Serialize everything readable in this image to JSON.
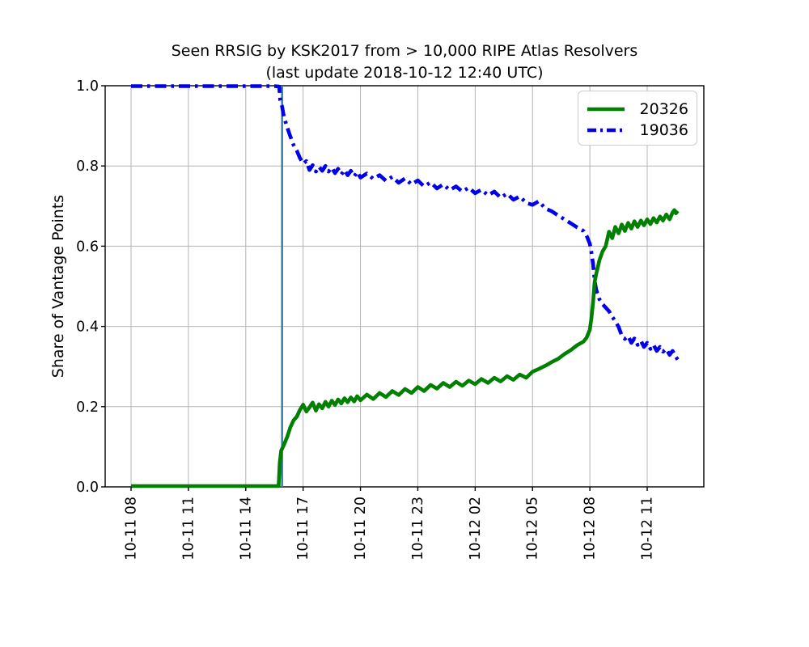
{
  "figure": {
    "title": "Seen RRSIG by KSK2017 from > 10,000 RIPE Atlas Resolvers",
    "subtitle": "(last update 2018-10-12 12:40 UTC)"
  },
  "chart_data": {
    "type": "line",
    "title": "Seen RRSIG by KSK2017 from > 10,000 RIPE Atlas Resolvers",
    "subtitle": "(last update 2018-10-12 12:40 UTC)",
    "xlabel": "",
    "ylabel": "Share of Vantage Points",
    "x_unit": "hours since 2018-10-11 08:00 UTC",
    "xlim": [
      -1.35,
      29.7
    ],
    "ylim": [
      0.0,
      1.0
    ],
    "grid": true,
    "grid_color": "#b4b4b4",
    "legend_position": "upper right",
    "x_ticks": [
      {
        "t": 0,
        "label": "10-11 08"
      },
      {
        "t": 3,
        "label": "10-11 11"
      },
      {
        "t": 6,
        "label": "10-11 14"
      },
      {
        "t": 9,
        "label": "10-11 17"
      },
      {
        "t": 12,
        "label": "10-11 20"
      },
      {
        "t": 15,
        "label": "10-11 23"
      },
      {
        "t": 18,
        "label": "10-12 02"
      },
      {
        "t": 21,
        "label": "10-12 05"
      },
      {
        "t": 24,
        "label": "10-12 08"
      },
      {
        "t": 27,
        "label": "10-12 11"
      }
    ],
    "y_ticks": [
      {
        "v": 0.0,
        "label": "0.0"
      },
      {
        "v": 0.2,
        "label": "0.2"
      },
      {
        "v": 0.4,
        "label": "0.4"
      },
      {
        "v": 0.6,
        "label": "0.6"
      },
      {
        "v": 0.8,
        "label": "0.8"
      },
      {
        "v": 1.0,
        "label": "1.0"
      }
    ],
    "vline": {
      "t": 7.9,
      "color": "#2e7d9b"
    },
    "series": [
      {
        "name": "20326",
        "color": "#008000",
        "line_style": "solid",
        "points": [
          [
            0,
            0.002
          ],
          [
            1,
            0.002
          ],
          [
            2,
            0.002
          ],
          [
            3,
            0.002
          ],
          [
            4,
            0.002
          ],
          [
            5,
            0.002
          ],
          [
            6,
            0.002
          ],
          [
            7,
            0.002
          ],
          [
            7.5,
            0.002
          ],
          [
            7.72,
            0.002
          ],
          [
            7.78,
            0.06
          ],
          [
            7.85,
            0.09
          ],
          [
            8,
            0.105
          ],
          [
            8.17,
            0.125
          ],
          [
            8.33,
            0.148
          ],
          [
            8.5,
            0.166
          ],
          [
            8.67,
            0.175
          ],
          [
            8.83,
            0.192
          ],
          [
            9,
            0.205
          ],
          [
            9.17,
            0.188
          ],
          [
            9.33,
            0.198
          ],
          [
            9.5,
            0.21
          ],
          [
            9.67,
            0.19
          ],
          [
            9.83,
            0.206
          ],
          [
            10,
            0.196
          ],
          [
            10.17,
            0.212
          ],
          [
            10.33,
            0.2
          ],
          [
            10.5,
            0.215
          ],
          [
            10.67,
            0.204
          ],
          [
            10.83,
            0.218
          ],
          [
            11,
            0.208
          ],
          [
            11.17,
            0.221
          ],
          [
            11.33,
            0.211
          ],
          [
            11.5,
            0.223
          ],
          [
            11.67,
            0.213
          ],
          [
            11.83,
            0.226
          ],
          [
            12,
            0.216
          ],
          [
            12.33,
            0.23
          ],
          [
            12.67,
            0.219
          ],
          [
            13,
            0.234
          ],
          [
            13.33,
            0.224
          ],
          [
            13.67,
            0.239
          ],
          [
            14,
            0.229
          ],
          [
            14.33,
            0.244
          ],
          [
            14.67,
            0.234
          ],
          [
            15,
            0.249
          ],
          [
            15.33,
            0.239
          ],
          [
            15.67,
            0.254
          ],
          [
            16,
            0.245
          ],
          [
            16.33,
            0.259
          ],
          [
            16.67,
            0.249
          ],
          [
            17,
            0.262
          ],
          [
            17.33,
            0.252
          ],
          [
            17.67,
            0.265
          ],
          [
            18,
            0.256
          ],
          [
            18.33,
            0.269
          ],
          [
            18.67,
            0.259
          ],
          [
            19,
            0.272
          ],
          [
            19.33,
            0.263
          ],
          [
            19.67,
            0.276
          ],
          [
            20,
            0.267
          ],
          [
            20.33,
            0.28
          ],
          [
            20.67,
            0.272
          ],
          [
            21,
            0.287
          ],
          [
            21.33,
            0.294
          ],
          [
            21.67,
            0.302
          ],
          [
            22,
            0.311
          ],
          [
            22.33,
            0.319
          ],
          [
            22.67,
            0.331
          ],
          [
            23,
            0.341
          ],
          [
            23.33,
            0.353
          ],
          [
            23.67,
            0.362
          ],
          [
            23.83,
            0.372
          ],
          [
            24,
            0.392
          ],
          [
            24.08,
            0.42
          ],
          [
            24.17,
            0.46
          ],
          [
            24.25,
            0.51
          ],
          [
            24.33,
            0.53
          ],
          [
            24.5,
            0.565
          ],
          [
            24.67,
            0.588
          ],
          [
            24.83,
            0.6
          ],
          [
            25,
            0.636
          ],
          [
            25.17,
            0.62
          ],
          [
            25.33,
            0.648
          ],
          [
            25.5,
            0.632
          ],
          [
            25.67,
            0.654
          ],
          [
            25.83,
            0.638
          ],
          [
            26,
            0.658
          ],
          [
            26.17,
            0.644
          ],
          [
            26.33,
            0.662
          ],
          [
            26.5,
            0.648
          ],
          [
            26.67,
            0.664
          ],
          [
            26.83,
            0.652
          ],
          [
            27,
            0.667
          ],
          [
            27.17,
            0.655
          ],
          [
            27.33,
            0.67
          ],
          [
            27.5,
            0.659
          ],
          [
            27.67,
            0.674
          ],
          [
            27.83,
            0.664
          ],
          [
            28,
            0.679
          ],
          [
            28.17,
            0.667
          ],
          [
            28.33,
            0.684
          ],
          [
            28.42,
            0.69
          ],
          [
            28.5,
            0.682
          ],
          [
            28.6,
            0.688
          ]
        ]
      },
      {
        "name": "19036",
        "color": "#0000ee",
        "line_style": "dashdot",
        "points": [
          [
            0,
            0.999
          ],
          [
            1,
            0.999
          ],
          [
            2,
            0.999
          ],
          [
            3,
            0.999
          ],
          [
            4,
            0.999
          ],
          [
            5,
            0.999
          ],
          [
            6,
            0.999
          ],
          [
            7,
            0.999
          ],
          [
            7.5,
            0.999
          ],
          [
            7.75,
            0.998
          ],
          [
            7.8,
            0.965
          ],
          [
            7.9,
            0.948
          ],
          [
            8,
            0.922
          ],
          [
            8.17,
            0.896
          ],
          [
            8.33,
            0.874
          ],
          [
            8.5,
            0.852
          ],
          [
            8.67,
            0.838
          ],
          [
            8.83,
            0.82
          ],
          [
            9,
            0.806
          ],
          [
            9.17,
            0.812
          ],
          [
            9.33,
            0.79
          ],
          [
            9.5,
            0.802
          ],
          [
            9.67,
            0.786
          ],
          [
            9.83,
            0.798
          ],
          [
            10,
            0.788
          ],
          [
            10.17,
            0.8
          ],
          [
            10.33,
            0.786
          ],
          [
            10.5,
            0.796
          ],
          [
            10.67,
            0.782
          ],
          [
            10.83,
            0.793
          ],
          [
            11,
            0.779
          ],
          [
            11.17,
            0.79
          ],
          [
            11.33,
            0.777
          ],
          [
            11.5,
            0.788
          ],
          [
            11.67,
            0.774
          ],
          [
            11.83,
            0.785
          ],
          [
            12,
            0.771
          ],
          [
            12.33,
            0.781
          ],
          [
            12.67,
            0.768
          ],
          [
            13,
            0.777
          ],
          [
            13.33,
            0.763
          ],
          [
            13.67,
            0.773
          ],
          [
            14,
            0.758
          ],
          [
            14.33,
            0.769
          ],
          [
            14.67,
            0.754
          ],
          [
            15,
            0.764
          ],
          [
            15.33,
            0.749
          ],
          [
            15.67,
            0.759
          ],
          [
            16,
            0.744
          ],
          [
            16.33,
            0.754
          ],
          [
            16.67,
            0.74
          ],
          [
            17,
            0.749
          ],
          [
            17.33,
            0.736
          ],
          [
            17.67,
            0.746
          ],
          [
            18,
            0.732
          ],
          [
            18.33,
            0.741
          ],
          [
            18.67,
            0.727
          ],
          [
            19,
            0.736
          ],
          [
            19.33,
            0.721
          ],
          [
            19.67,
            0.731
          ],
          [
            20,
            0.716
          ],
          [
            20.33,
            0.724
          ],
          [
            20.67,
            0.708
          ],
          [
            21,
            0.703
          ],
          [
            21.33,
            0.712
          ],
          [
            21.67,
            0.694
          ],
          [
            22,
            0.687
          ],
          [
            22.33,
            0.677
          ],
          [
            22.67,
            0.667
          ],
          [
            23,
            0.657
          ],
          [
            23.33,
            0.647
          ],
          [
            23.67,
            0.638
          ],
          [
            23.83,
            0.626
          ],
          [
            24,
            0.606
          ],
          [
            24.08,
            0.585
          ],
          [
            24.17,
            0.555
          ],
          [
            24.25,
            0.515
          ],
          [
            24.33,
            0.492
          ],
          [
            24.5,
            0.468
          ],
          [
            24.67,
            0.455
          ],
          [
            24.83,
            0.447
          ],
          [
            25,
            0.438
          ],
          [
            25.17,
            0.424
          ],
          [
            25.33,
            0.413
          ],
          [
            25.5,
            0.399
          ],
          [
            25.67,
            0.377
          ],
          [
            25.83,
            0.369
          ],
          [
            26,
            0.376
          ],
          [
            26.17,
            0.359
          ],
          [
            26.33,
            0.37
          ],
          [
            26.5,
            0.354
          ],
          [
            26.67,
            0.364
          ],
          [
            26.83,
            0.349
          ],
          [
            27,
            0.359
          ],
          [
            27.17,
            0.344
          ],
          [
            27.33,
            0.354
          ],
          [
            27.5,
            0.339
          ],
          [
            27.67,
            0.349
          ],
          [
            27.83,
            0.337
          ],
          [
            28,
            0.344
          ],
          [
            28.17,
            0.329
          ],
          [
            28.33,
            0.339
          ],
          [
            28.5,
            0.324
          ],
          [
            28.6,
            0.317
          ]
        ]
      }
    ]
  }
}
